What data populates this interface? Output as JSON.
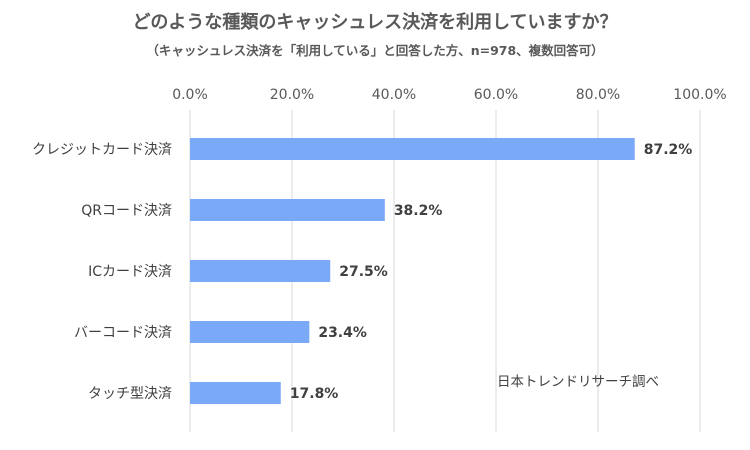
{
  "title": "どのような種類のキャッシュレス決済を利用していますか？",
  "subtitle": "（キャッシュレス決済を「利用している」と回答した方、n=978、複数回答可）",
  "note": "日本トレンドリサーチ調べ",
  "colors": {
    "bar": "#7aaaf7",
    "grid": "#d9d9d9"
  },
  "chart_data": {
    "type": "bar",
    "orientation": "horizontal",
    "categories": [
      "クレジットカード決済",
      "QRコード決済",
      "ICカード決済",
      "バーコード決済",
      "タッチ型決済"
    ],
    "values": [
      87.2,
      38.2,
      27.5,
      23.4,
      17.8
    ],
    "value_labels": [
      "87.2%",
      "38.2%",
      "27.5%",
      "23.4%",
      "17.8%"
    ],
    "xlim": [
      0,
      100
    ],
    "xticks": [
      0,
      20,
      40,
      60,
      80,
      100
    ],
    "xtick_labels": [
      "0.0%",
      "20.0%",
      "40.0%",
      "60.0%",
      "80.0%",
      "100.0%"
    ],
    "axis_position": "top",
    "grid": true,
    "legend": "none"
  }
}
